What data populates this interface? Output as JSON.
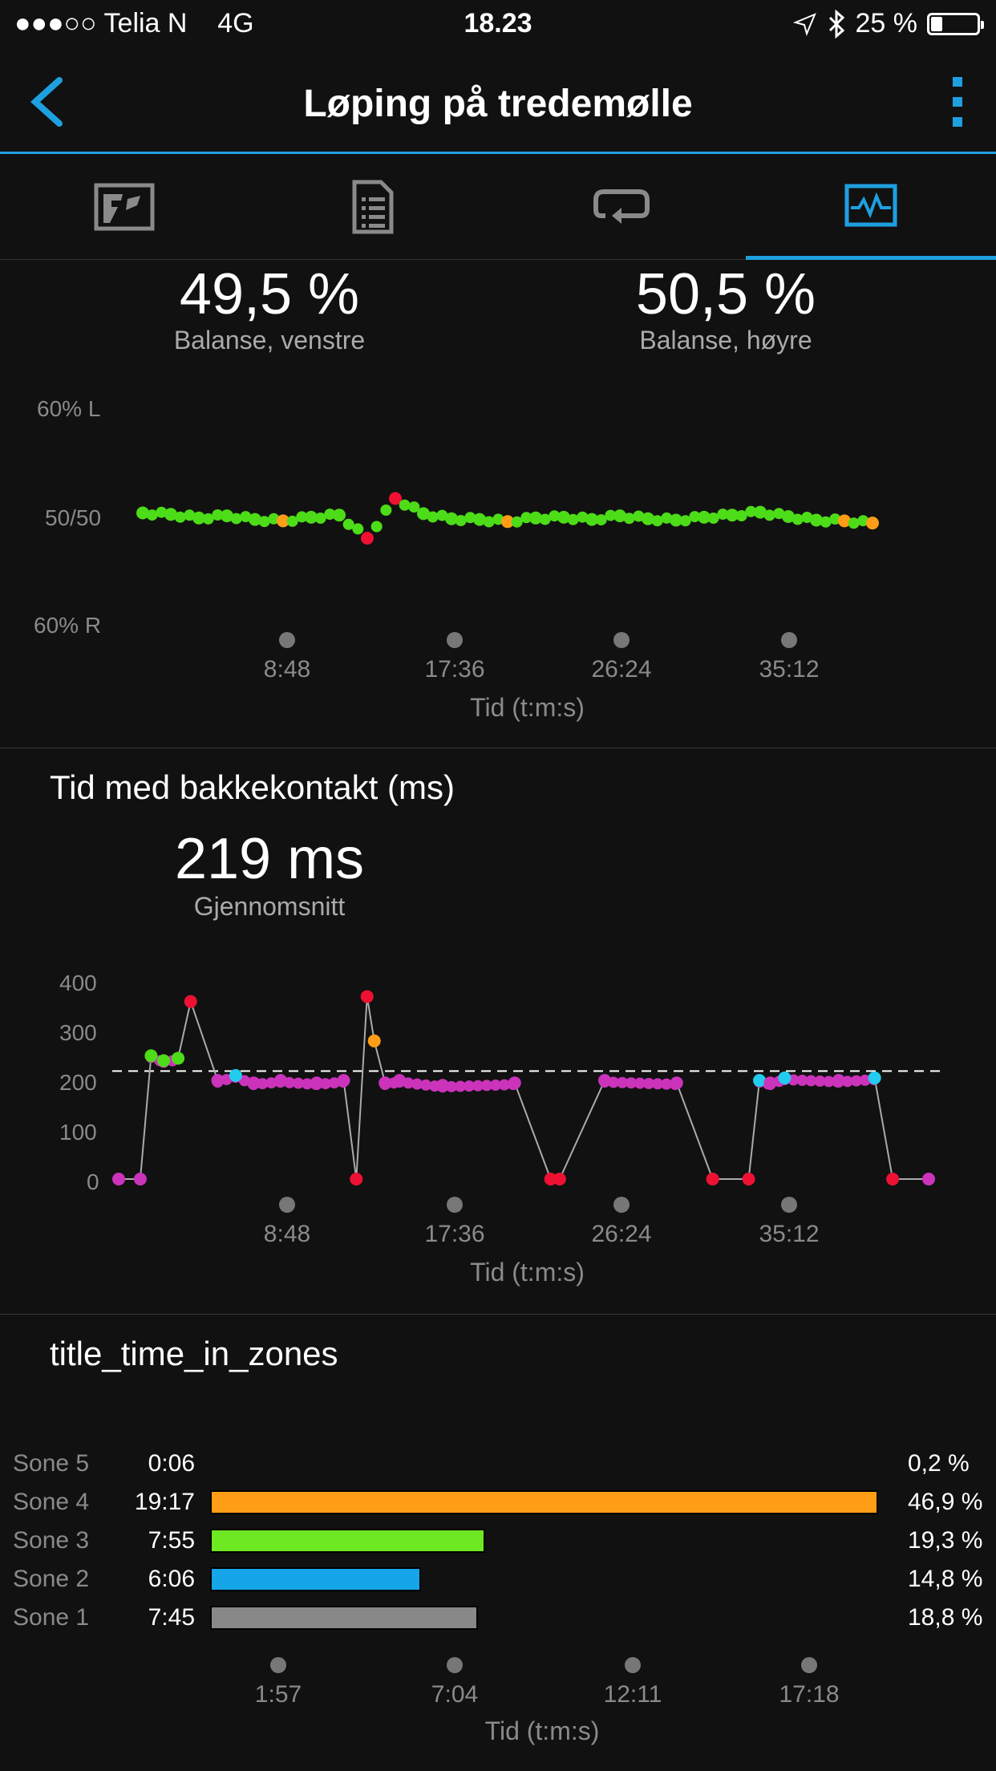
{
  "status_bar": {
    "signal": "●●●○○",
    "carrier": "Telia N",
    "network": "4G",
    "time": "18.23",
    "battery_text": "25 %",
    "battery_level": 0.25
  },
  "header": {
    "title": "Løping på tredemølle",
    "accent_color": "#1ea0e0"
  },
  "tabs": [
    {
      "icon": "map-icon",
      "active": false
    },
    {
      "icon": "document-icon",
      "active": false
    },
    {
      "icon": "laps-icon",
      "active": false
    },
    {
      "icon": "chart-icon",
      "active": true
    }
  ],
  "balance": {
    "left_value": "49,5 %",
    "left_label": "Balanse, venstre",
    "right_value": "50,5 %",
    "right_label": "Balanse, høyre",
    "y_labels": [
      "60% L",
      "50/50",
      "60% R"
    ]
  },
  "ground_contact": {
    "title": "Tid med bakkekontakt (ms)",
    "value": "219 ms",
    "value_label": "Gjennomsnitt",
    "y_ticks": [
      "400",
      "300",
      "200",
      "100",
      "0"
    ]
  },
  "zones": {
    "title": "title_time_in_zones",
    "rows": [
      {
        "label": "Sone 5",
        "time": "0:06",
        "pct": "0,2 %",
        "fraction": 0.002,
        "color": "#888888"
      },
      {
        "label": "Sone 4",
        "time": "19:17",
        "pct": "46,9 %",
        "fraction": 0.469,
        "color": "#ff9e16"
      },
      {
        "label": "Sone 3",
        "time": "7:55",
        "pct": "19,3 %",
        "fraction": 0.193,
        "color": "#6ee822"
      },
      {
        "label": "Sone 2",
        "time": "6:06",
        "pct": "14,8 %",
        "fraction": 0.148,
        "color": "#16a5e8"
      },
      {
        "label": "Sone 1",
        "time": "7:45",
        "pct": "18,8 %",
        "fraction": 0.188,
        "color": "#888888"
      }
    ],
    "x_ticks": [
      "1:57",
      "7:04",
      "12:11",
      "17:18"
    ],
    "x_label": "Tid (t:m:s)"
  },
  "time_axis": {
    "ticks": [
      "8:48",
      "17:36",
      "26:24",
      "35:12"
    ],
    "label": "Tid (t:m:s)"
  },
  "chart_data": [
    {
      "type": "scatter",
      "ylabel": "",
      "xlabel": "Tid (t:m:s)",
      "y_tick_labels": [
        "60% L",
        "50/50",
        "60% R"
      ],
      "ylim": [
        40,
        60
      ],
      "series": [
        {
          "values_pct_left": [
            50.5,
            50.3,
            49.8,
            50.1,
            49.6,
            49.4,
            49.9,
            50.2,
            47.0,
            52.5,
            50.4,
            49.7,
            49.6,
            49.3,
            49.8,
            49.9,
            49.6,
            50.1,
            49.7,
            49.5,
            49.9,
            50.2,
            50.6,
            50.0,
            49.5,
            49.4,
            49.1
          ],
          "color": "#4ddc18"
        }
      ]
    },
    {
      "type": "scatter",
      "xlabel": "Tid (t:m:s)",
      "ylim": [
        0,
        400
      ],
      "average": 219,
      "x_minutes": [
        0,
        1.2,
        1.8,
        2.5,
        3.3,
        4.0,
        5.5,
        6.5,
        7.5,
        9.0,
        11.0,
        12.5,
        13.2,
        13.8,
        14.2,
        14.8,
        15.6,
        18.0,
        22.0,
        24.0,
        24.5,
        27.0,
        31.0,
        33.0,
        35.0,
        35.6,
        36.2,
        37.0,
        40.0,
        42.0,
        43.0,
        45.0
      ],
      "values": [
        0,
        0,
        250,
        240,
        245,
        360,
        200,
        210,
        195,
        200,
        195,
        200,
        0,
        370,
        280,
        195,
        200,
        190,
        195,
        0,
        0,
        200,
        195,
        0,
        0,
        200,
        195,
        205,
        200,
        205,
        0,
        0
      ],
      "colors": [
        "#cc33bb",
        "#cc33bb",
        "#4ddc18",
        "#4ddc18",
        "#4ddc18",
        "#ee1133",
        "#cc33bb",
        "#22ccee",
        "#cc33bb",
        "#cc33bb",
        "#cc33bb",
        "#cc33bb",
        "#ee1133",
        "#ee1133",
        "#ff9e16",
        "#cc33bb",
        "#cc33bb",
        "#cc33bb",
        "#cc33bb",
        "#ee1133",
        "#ee1133",
        "#cc33bb",
        "#cc33bb",
        "#ee1133",
        "#ee1133",
        "#22ccee",
        "#cc33bb",
        "#22ccee",
        "#cc33bb",
        "#22ccee",
        "#ee1133",
        "#cc33bb"
      ]
    }
  ]
}
